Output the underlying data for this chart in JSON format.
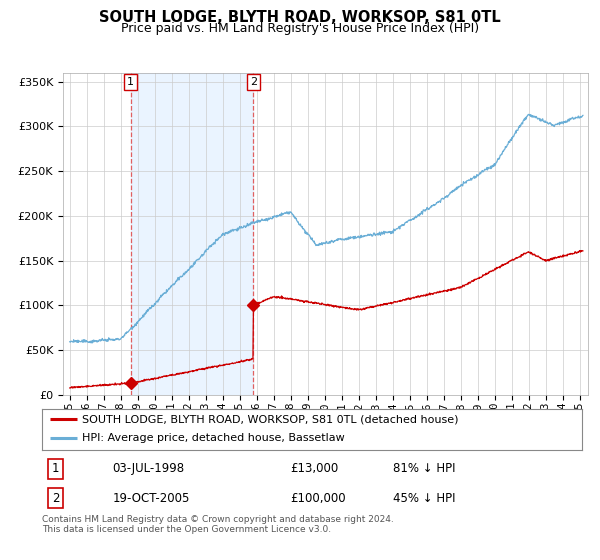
{
  "title": "SOUTH LODGE, BLYTH ROAD, WORKSOP, S81 0TL",
  "subtitle": "Price paid vs. HM Land Registry's House Price Index (HPI)",
  "legend_line1": "SOUTH LODGE, BLYTH ROAD, WORKSOP, S81 0TL (detached house)",
  "legend_line2": "HPI: Average price, detached house, Bassetlaw",
  "sale1_date": "03-JUL-1998",
  "sale1_price": "£13,000",
  "sale1_hpi": "81% ↓ HPI",
  "sale2_date": "19-OCT-2005",
  "sale2_price": "£100,000",
  "sale2_hpi": "45% ↓ HPI",
  "footer": "Contains HM Land Registry data © Crown copyright and database right 2024.\nThis data is licensed under the Open Government Licence v3.0.",
  "hpi_color": "#6aaed6",
  "property_color": "#cc0000",
  "vline_color": "#e06060",
  "shade_color": "#ddeeff",
  "background_color": "#ffffff",
  "grid_color": "#cccccc",
  "ylim": [
    0,
    360000
  ],
  "yticks": [
    0,
    50000,
    100000,
    150000,
    200000,
    250000,
    300000,
    350000
  ],
  "sale1_year": 1998.58,
  "sale2_year": 2005.8,
  "xstart": 1995,
  "xend": 2025
}
